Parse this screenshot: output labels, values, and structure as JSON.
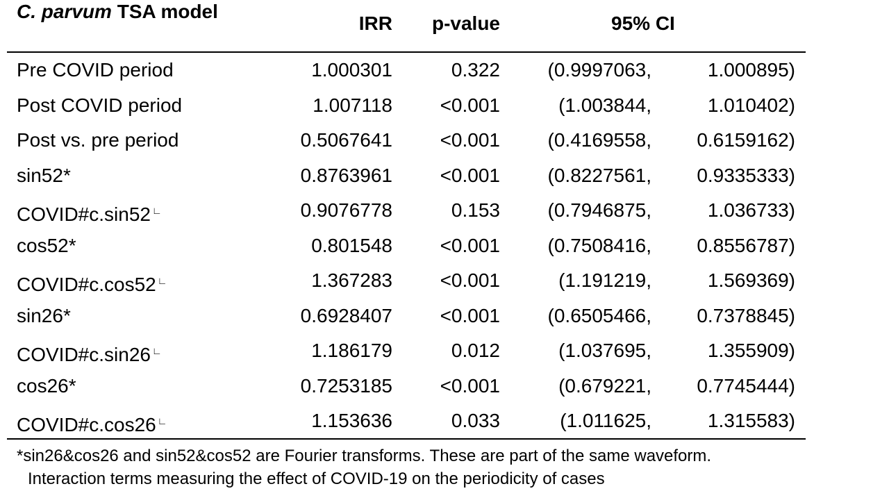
{
  "header": {
    "title_italic": "C. parvum",
    "title_rest": " TSA model",
    "col_irr": "IRR",
    "col_p": "p-value",
    "col_ci": "95% CI"
  },
  "rows": [
    {
      "label": "Pre COVID period",
      "mark": "",
      "irr": "1.000301",
      "p": "0.322",
      "ci_low": "(0.9997063,",
      "ci_high": "1.000895)"
    },
    {
      "label": "Post COVID period",
      "mark": "",
      "irr": "1.007118",
      "p": "<0.001",
      "ci_low": "(1.003844,",
      "ci_high": "1.010402)"
    },
    {
      "label": "Post vs. pre period",
      "mark": "",
      "irr": "0.5067641",
      "p": "<0.001",
      "ci_low": "(0.4169558,",
      "ci_high": "0.6159162)"
    },
    {
      "label": "sin52*",
      "mark": "",
      "irr": "0.8763961",
      "p": "<0.001",
      "ci_low": "(0.8227561,",
      "ci_high": "0.9335333)"
    },
    {
      "label": "COVID#c.sin52",
      "mark": "∟",
      "irr": "0.9076778",
      "p": "0.153",
      "ci_low": "(0.7946875,",
      "ci_high": "1.036733)"
    },
    {
      "label": "cos52*",
      "mark": "",
      "irr": "0.801548",
      "p": "<0.001",
      "ci_low": "(0.7508416,",
      "ci_high": "0.8556787)"
    },
    {
      "label": "COVID#c.cos52",
      "mark": "∟",
      "irr": "1.367283",
      "p": "<0.001",
      "ci_low": "(1.191219,",
      "ci_high": "1.569369)"
    },
    {
      "label": "sin26*",
      "mark": "",
      "irr": "0.6928407",
      "p": "<0.001",
      "ci_low": "(0.6505466,",
      "ci_high": "0.7378845)"
    },
    {
      "label": "COVID#c.sin26",
      "mark": "∟",
      "irr": "1.186179",
      "p": "0.012",
      "ci_low": "(1.037695,",
      "ci_high": "1.355909)"
    },
    {
      "label": "cos26*",
      "mark": "",
      "irr": "0.7253185",
      "p": "<0.001",
      "ci_low": "(0.679221,",
      "ci_high": "0.7745444)"
    },
    {
      "label": "COVID#c.cos26",
      "mark": "∟",
      "irr": "1.153636",
      "p": "0.033",
      "ci_low": "(1.011625,",
      "ci_high": "1.315583)"
    }
  ],
  "footnotes": [
    "*sin26&cos26 and sin52&cos52 are Fourier transforms. These are part of the same waveform.",
    "Interaction terms measuring the effect of COVID-19 on the periodicity of cases"
  ]
}
